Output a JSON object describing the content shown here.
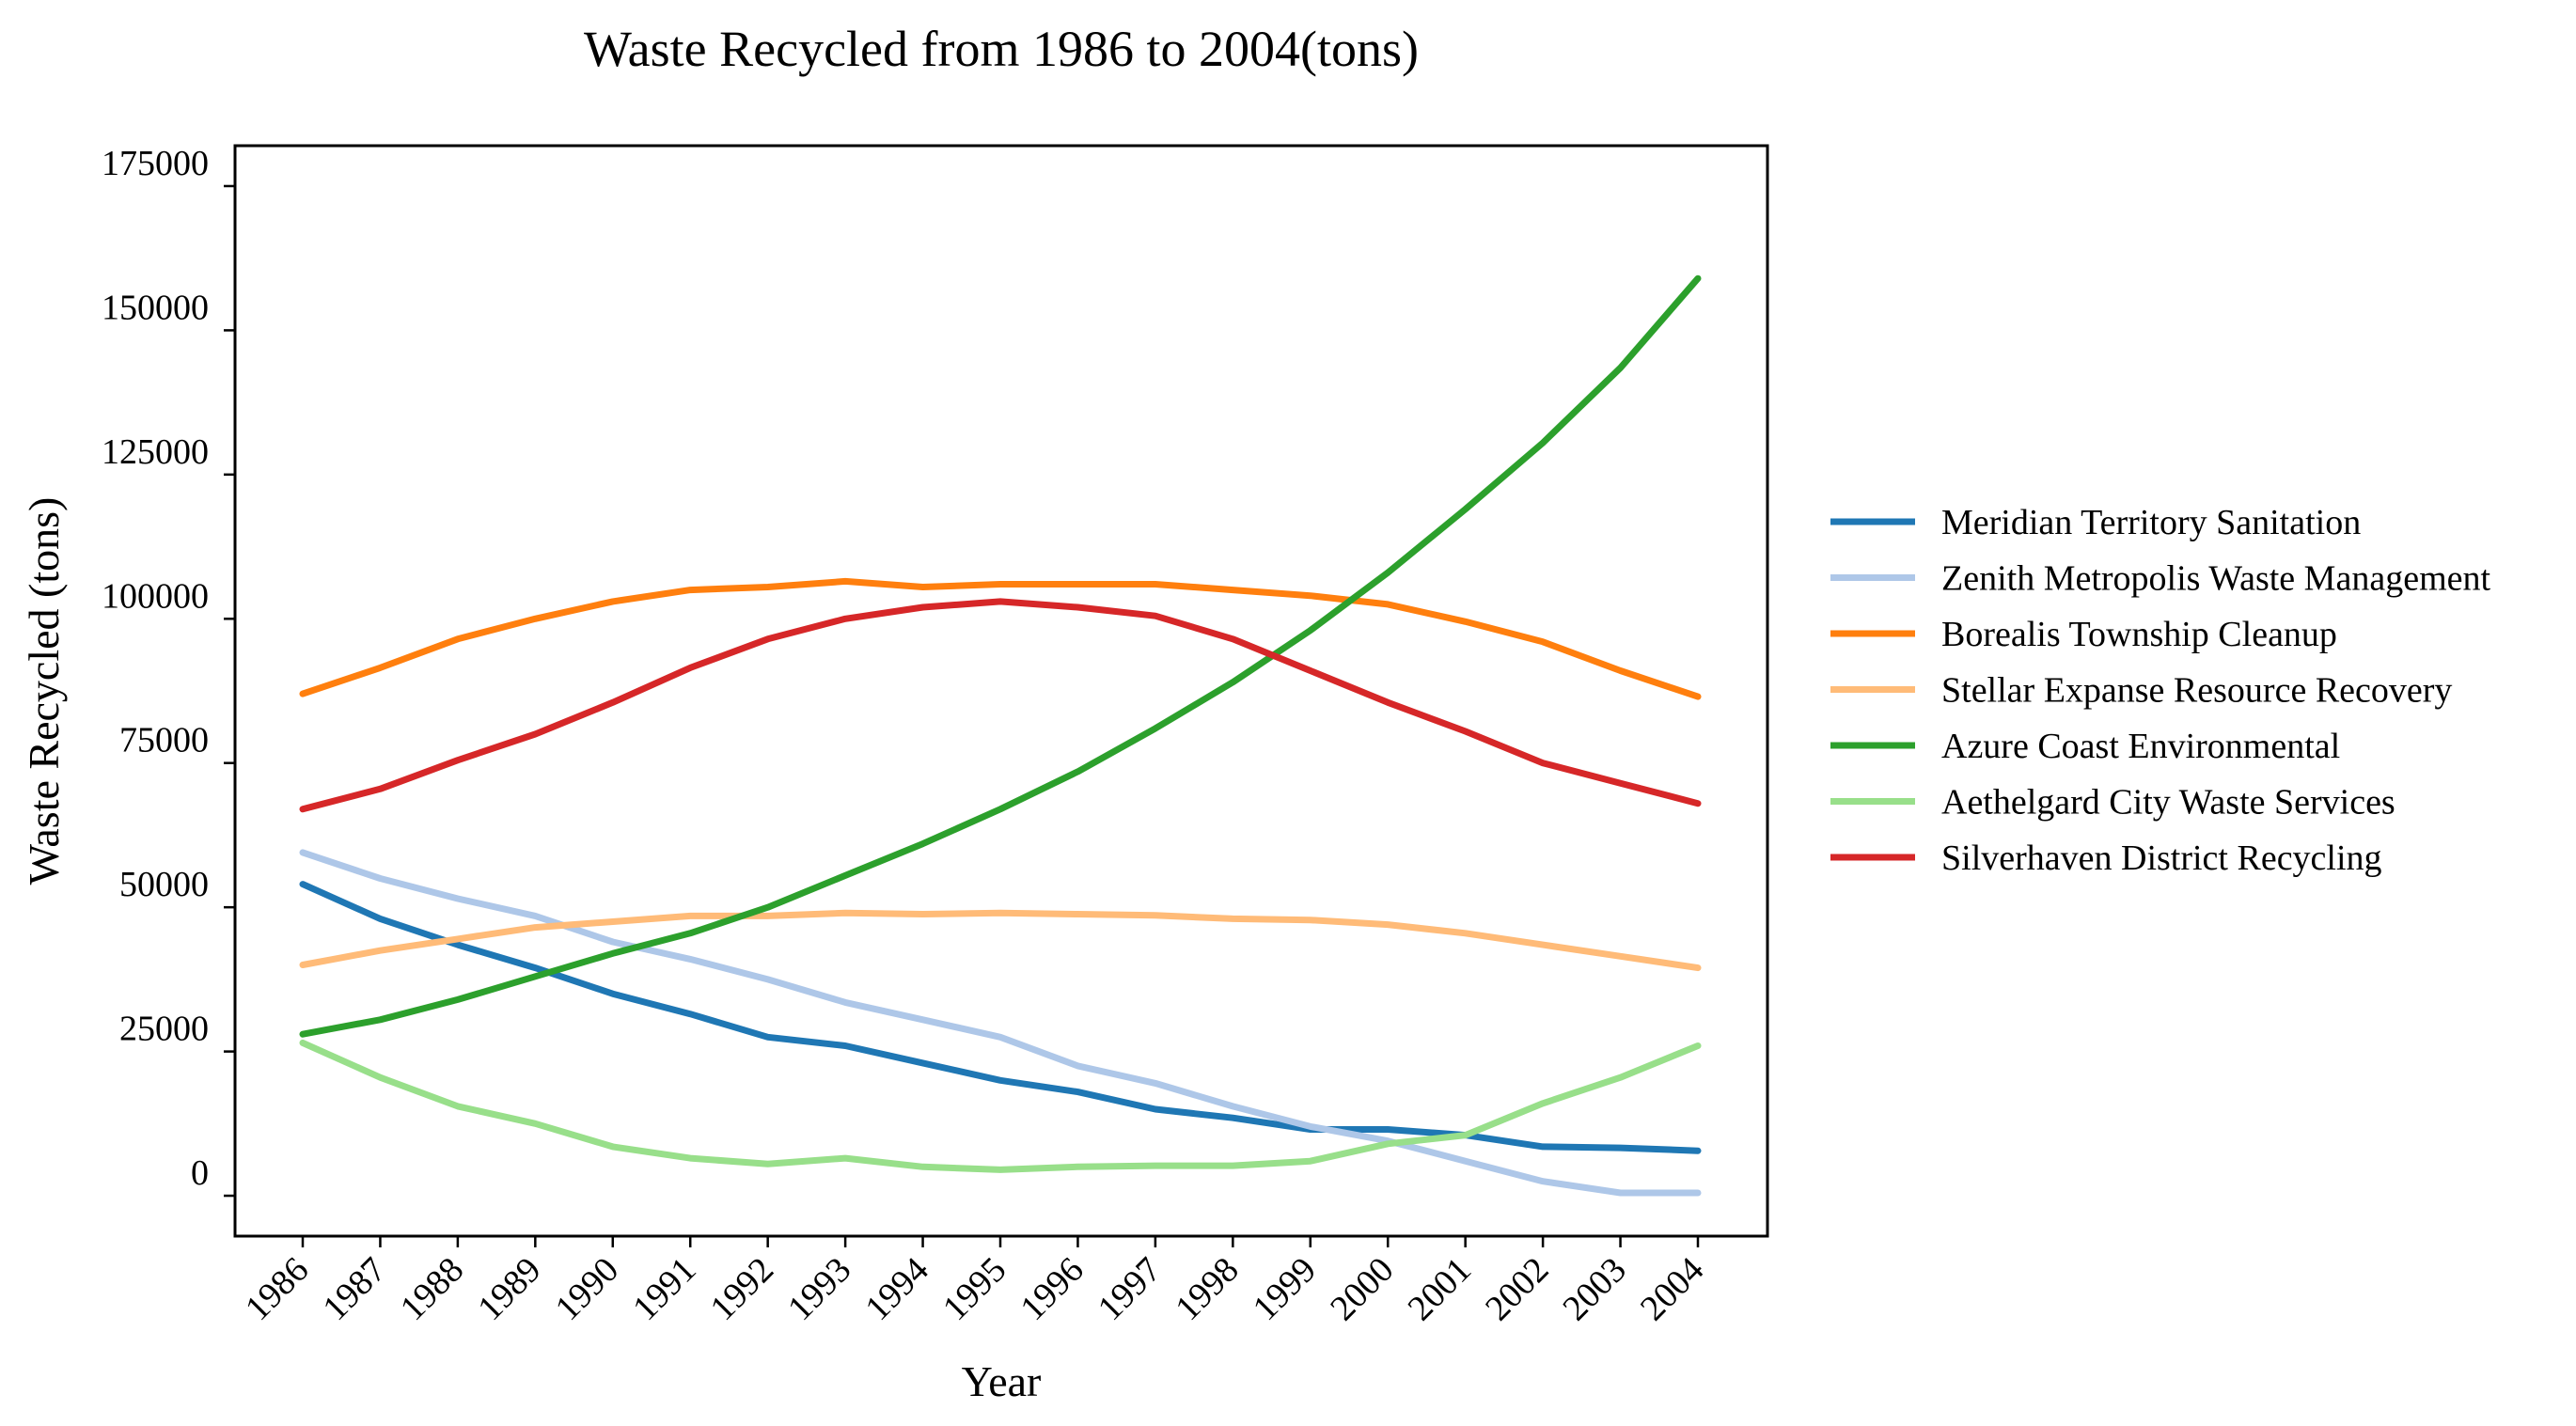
{
  "chart_data": {
    "type": "line",
    "title": "Waste Recycled from 1986 to 2004(tons)",
    "xlabel": "Year",
    "ylabel": "Waste Recycled (tons)",
    "categories": [
      "1986",
      "1987",
      "1988",
      "1989",
      "1990",
      "1991",
      "1992",
      "1993",
      "1994",
      "1995",
      "1996",
      "1997",
      "1998",
      "1999",
      "2000",
      "2001",
      "2002",
      "2003",
      "2004"
    ],
    "yticks": [
      0,
      25000,
      50000,
      75000,
      100000,
      125000,
      150000,
      175000
    ],
    "ylim": [
      -7000,
      182000
    ],
    "grid": false,
    "legend_position": "right",
    "series": [
      {
        "name": "Meridian Territory Sanitation",
        "color": "#1f77b4",
        "values": [
          54000,
          48000,
          43500,
          39500,
          35000,
          31500,
          27500,
          26000,
          23000,
          20000,
          18000,
          15000,
          13500,
          11500,
          11500,
          10500,
          8500,
          8300,
          7800
        ]
      },
      {
        "name": "Zenith Metropolis Waste Management",
        "color": "#aec7e8",
        "values": [
          59500,
          55000,
          51500,
          48500,
          44000,
          41000,
          37500,
          33500,
          30500,
          27500,
          22500,
          19500,
          15500,
          12000,
          9500,
          6000,
          2500,
          500,
          500
        ]
      },
      {
        "name": "Borealis Township Cleanup",
        "color": "#ff7f0e",
        "values": [
          87000,
          91500,
          96500,
          100000,
          103000,
          105000,
          105500,
          106500,
          105500,
          106000,
          106000,
          106000,
          105000,
          104000,
          102500,
          99500,
          96000,
          91000,
          86500
        ]
      },
      {
        "name": "Stellar Expanse Resource Recovery",
        "color": "#ffbb78",
        "values": [
          40000,
          42500,
          44500,
          46500,
          47500,
          48500,
          48500,
          49000,
          48800,
          49000,
          48800,
          48600,
          48000,
          47800,
          47000,
          45500,
          43500,
          41500,
          39500
        ]
      },
      {
        "name": "Azure Coast Environmental",
        "color": "#2ca02c",
        "values": [
          28000,
          30500,
          34000,
          38000,
          42000,
          45500,
          50000,
          55500,
          61000,
          67000,
          73500,
          81000,
          89000,
          98000,
          108000,
          119000,
          130500,
          143500,
          159000
        ]
      },
      {
        "name": "Aethelgard City Waste Services",
        "color": "#98df8a",
        "values": [
          26500,
          20500,
          15500,
          12500,
          8500,
          6500,
          5500,
          6500,
          5000,
          4500,
          5000,
          5200,
          5200,
          6000,
          9000,
          10500,
          16000,
          20500,
          26000
        ]
      },
      {
        "name": "Silverhaven District Recycling",
        "color": "#d62728",
        "values": [
          67000,
          70500,
          75500,
          80000,
          85500,
          91500,
          96500,
          100000,
          102000,
          103000,
          102000,
          100500,
          96500,
          91000,
          85500,
          80500,
          75000,
          71500,
          68000
        ]
      }
    ]
  }
}
